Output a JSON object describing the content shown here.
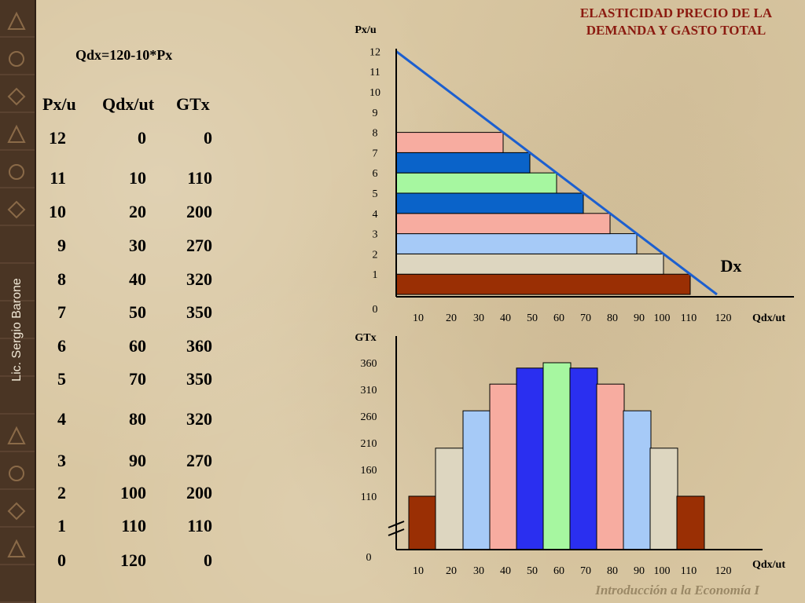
{
  "side": {
    "author": "Lic. Sergio Barone"
  },
  "header": {
    "title_line1": "ELASTICIDAD PRECIO DE LA",
    "title_line2": "DEMANDA Y GASTO TOTAL"
  },
  "table": {
    "formula": "Qdx=120-10*Px",
    "headers": [
      "Px/u",
      "Qdx/ut",
      "GTx"
    ],
    "rows": [
      [
        "12",
        "0",
        "0"
      ],
      [
        "11",
        "10",
        "110"
      ],
      [
        "10",
        "20",
        "200"
      ],
      [
        "9",
        "30",
        "270"
      ],
      [
        "8",
        "40",
        "320"
      ],
      [
        "7",
        "50",
        "350"
      ],
      [
        "6",
        "60",
        "360"
      ],
      [
        "5",
        "70",
        "350"
      ],
      [
        "4",
        "80",
        "320"
      ],
      [
        "3",
        "90",
        "270"
      ],
      [
        "2",
        "100",
        "200"
      ],
      [
        "1",
        "110",
        "110"
      ],
      [
        "0",
        "120",
        "0"
      ]
    ]
  },
  "footer": {
    "text": "Introducción a la Economía I"
  },
  "colors": {
    "salmon": "#f7aca0",
    "blue_dark": "#0a63c9",
    "green": "#a6f7a0",
    "blue_light": "#a6caf7",
    "beige": "#ddd6c0",
    "brown": "#9a2f04",
    "blue_royal": "#2a2ff0",
    "demand_line": "#1c5fcf",
    "axis": "#000000"
  },
  "chart_data": [
    {
      "type": "bar",
      "orientation": "horizontal",
      "title": "",
      "xlabel": "Qdx/ut",
      "ylabel": "Px/u",
      "ylim": [
        0,
        12
      ],
      "x_ticks": [
        "10",
        "20",
        "30",
        "40",
        "50",
        "60",
        "70",
        "80",
        "90",
        "100",
        "110",
        "120"
      ],
      "y_ticks": [
        "0",
        "1",
        "2",
        "3",
        "4",
        "5",
        "6",
        "7",
        "8",
        "9",
        "10",
        "11",
        "12"
      ],
      "bars": [
        {
          "price": 1,
          "quantity": 110,
          "color": "#9a2f04"
        },
        {
          "price": 2,
          "quantity": 100,
          "color": "#ddd6c0"
        },
        {
          "price": 3,
          "quantity": 90,
          "color": "#a6caf7"
        },
        {
          "price": 4,
          "quantity": 80,
          "color": "#f7aca0"
        },
        {
          "price": 5,
          "quantity": 70,
          "color": "#0a63c9"
        },
        {
          "price": 6,
          "quantity": 60,
          "color": "#a6f7a0"
        },
        {
          "price": 7,
          "quantity": 50,
          "color": "#0a63c9"
        },
        {
          "price": 8,
          "quantity": 40,
          "color": "#f7aca0"
        }
      ],
      "demand_line": {
        "label": "Dx",
        "from": [
          0,
          12
        ],
        "to": [
          120,
          0
        ]
      }
    },
    {
      "type": "bar",
      "title": "",
      "xlabel": "Qdx/ut",
      "ylabel": "GTx",
      "axis_break": true,
      "x_ticks": [
        "10",
        "20",
        "30",
        "40",
        "50",
        "60",
        "70",
        "80",
        "90",
        "100",
        "110",
        "120"
      ],
      "y_ticks": [
        "0",
        "110",
        "160",
        "210",
        "260",
        "310",
        "360"
      ],
      "bars": [
        {
          "quantity": 10,
          "value": 110,
          "color": "#9a2f04"
        },
        {
          "quantity": 20,
          "value": 200,
          "color": "#ddd6c0"
        },
        {
          "quantity": 30,
          "value": 270,
          "color": "#a6caf7"
        },
        {
          "quantity": 40,
          "value": 320,
          "color": "#f7aca0"
        },
        {
          "quantity": 50,
          "value": 350,
          "color": "#2a2ff0"
        },
        {
          "quantity": 60,
          "value": 360,
          "color": "#a6f7a0"
        },
        {
          "quantity": 70,
          "value": 350,
          "color": "#2a2ff0"
        },
        {
          "quantity": 80,
          "value": 320,
          "color": "#f7aca0"
        },
        {
          "quantity": 90,
          "value": 270,
          "color": "#a6caf7"
        },
        {
          "quantity": 100,
          "value": 200,
          "color": "#ddd6c0"
        },
        {
          "quantity": 110,
          "value": 110,
          "color": "#9a2f04"
        }
      ]
    }
  ]
}
